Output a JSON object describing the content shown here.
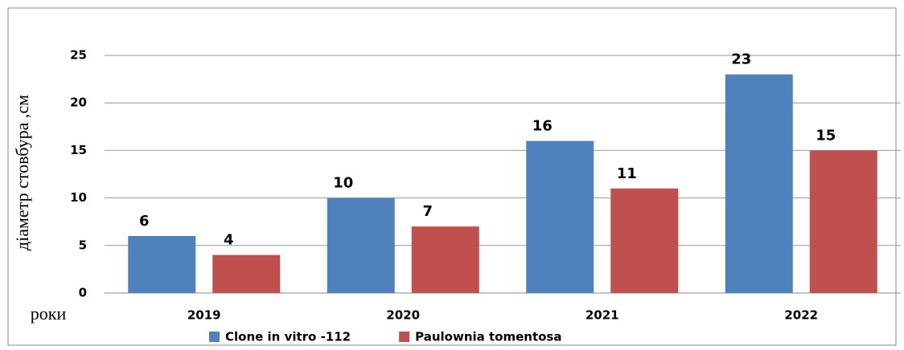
{
  "chart_data": {
    "type": "bar",
    "xlabel": "роки",
    "ylabel": "діаметр стовбура ,см",
    "categories": [
      "2019",
      "2020",
      "2021",
      "2022"
    ],
    "series": [
      {
        "name": "Clone in vitro -112",
        "color": "#4f81bd",
        "values": [
          6,
          10,
          16,
          23
        ]
      },
      {
        "name": "Paulownia tomentosa",
        "color": "#c0504d",
        "values": [
          4,
          7,
          11,
          15
        ]
      }
    ],
    "ylim": [
      0,
      25
    ],
    "yticks": [
      0,
      5,
      10,
      15,
      20,
      25
    ],
    "grid": true,
    "legend": "bottom"
  }
}
